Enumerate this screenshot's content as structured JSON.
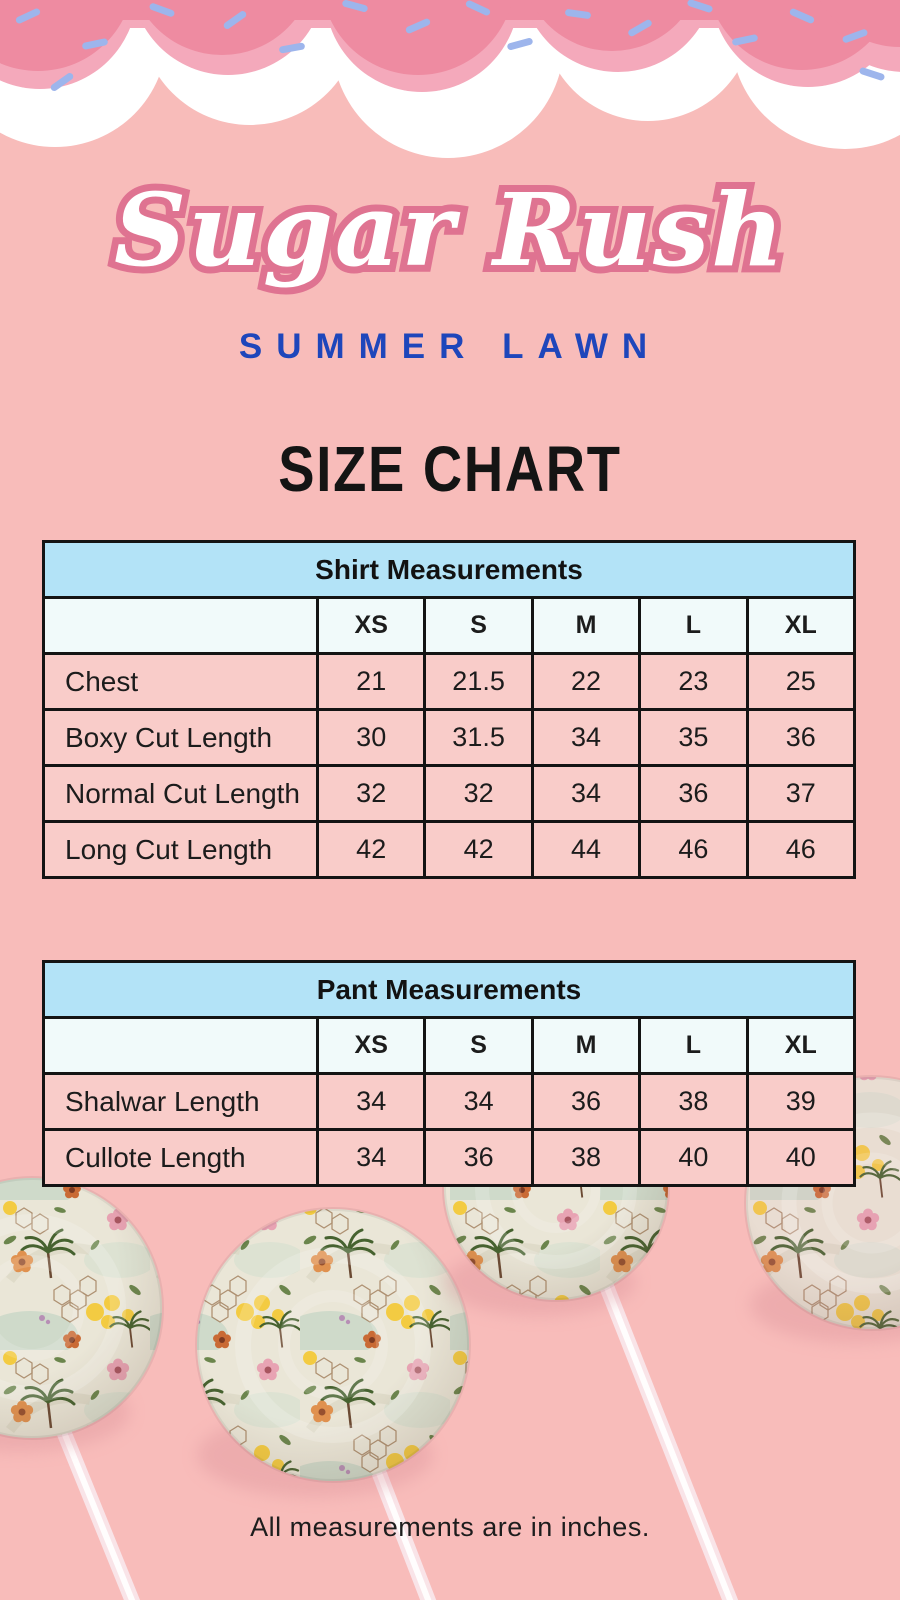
{
  "header": {
    "logo_text": "Sugar Rush",
    "collection": "SUMMER LAWN",
    "page_title": "SIZE CHART"
  },
  "tables": {
    "shirt": {
      "title": "Shirt Measurements",
      "sizes": [
        "XS",
        "S",
        "M",
        "L",
        "XL"
      ],
      "rows": [
        {
          "label": "Chest",
          "values": [
            "21",
            "21.5",
            "22",
            "23",
            "25"
          ]
        },
        {
          "label": "Boxy Cut Length",
          "values": [
            "30",
            "31.5",
            "34",
            "35",
            "36"
          ]
        },
        {
          "label": "Normal Cut Length",
          "values": [
            "32",
            "32",
            "34",
            "36",
            "37"
          ]
        },
        {
          "label": "Long Cut Length",
          "values": [
            "42",
            "42",
            "44",
            "46",
            "46"
          ]
        }
      ]
    },
    "pant": {
      "title": "Pant Measurements",
      "sizes": [
        "XS",
        "S",
        "M",
        "L",
        "XL"
      ],
      "rows": [
        {
          "label": "Shalwar Length",
          "values": [
            "34",
            "34",
            "36",
            "38",
            "39"
          ]
        },
        {
          "label": "Cullote Length",
          "values": [
            "34",
            "36",
            "38",
            "40",
            "40"
          ]
        }
      ]
    }
  },
  "footer": {
    "note": "All measurements are in inches."
  },
  "colors": {
    "background": "#f8bcba",
    "frosting_pink": "#ee8ba1",
    "frosting_shadow_pink": "#f4a9bb",
    "cloud_white": "#ffffff",
    "sprinkle_blue": "#9db5ec",
    "logo_fill": "#ffffff",
    "logo_outline": "#df7391",
    "collection_blue": "#1e46bb",
    "title_black": "#141414",
    "table_header_blue": "#b3e3f7",
    "table_size_row": "#f1fafa",
    "table_row_pink": "#f9ccc9",
    "table_border": "#141414",
    "stick_pink": "#f9e4e8"
  }
}
